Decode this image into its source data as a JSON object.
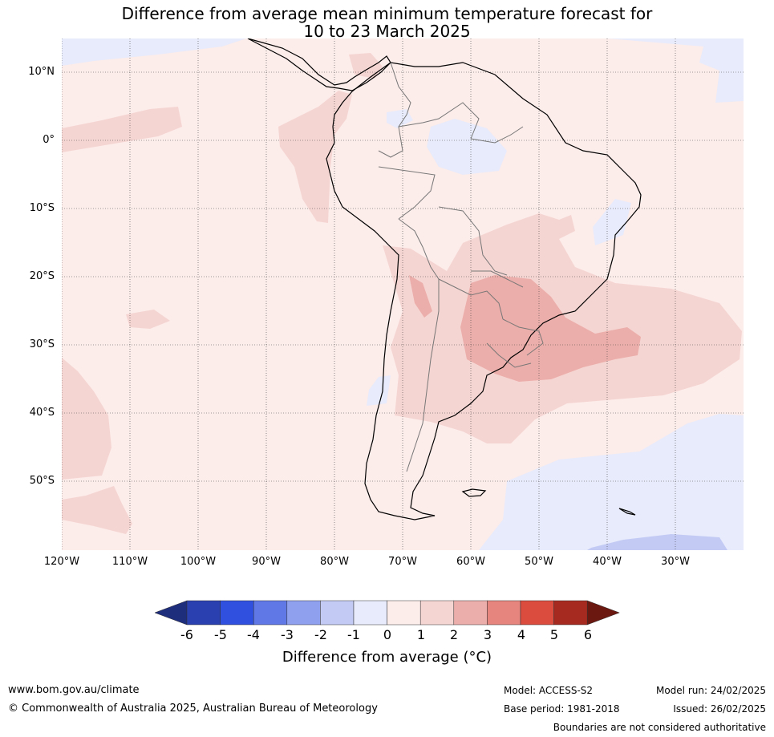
{
  "title": {
    "line1": "Difference from average mean minimum temperature forecast for",
    "line2": "10 to 23 March 2025"
  },
  "axes": {
    "lat_labels": [
      "10°N",
      "0°",
      "10°S",
      "20°S",
      "30°S",
      "40°S",
      "50°S"
    ],
    "lon_labels": [
      "120°W",
      "110°W",
      "100°W",
      "90°W",
      "80°W",
      "70°W",
      "60°W",
      "50°W",
      "40°W",
      "30°W"
    ],
    "lon_range": [
      -120,
      -20
    ],
    "lat_range": [
      -60,
      15
    ]
  },
  "colorbar": {
    "labels": [
      "-6",
      "-5",
      "-4",
      "-3",
      "-2",
      "-1",
      "0",
      "1",
      "2",
      "3",
      "4",
      "5",
      "6"
    ],
    "title": "Difference from average (°C)",
    "colors": [
      "#1f2d7d",
      "#2a3fb0",
      "#3050e0",
      "#5f78e6",
      "#8ea0ee",
      "#c3cbf5",
      "#e8ebfb",
      "#fcecea",
      "#f5d5d2",
      "#ecaeaa",
      "#e6847e",
      "#db4b3e",
      "#a72a20",
      "#6b1810"
    ]
  },
  "map_colors": {
    "ocean_default": "#fcecea",
    "warm_1_2": "#f5d5d2",
    "warm_2_3": "#ecaeaa",
    "cool_0_1": "#e8ebfb",
    "cool_1_2": "#c3cbf5"
  },
  "footer": {
    "website": "www.bom.gov.au/climate",
    "copyright": "© Commonwealth of Australia 2025, Australian Bureau of Meteorology",
    "model": "Model: ACCESS-S2",
    "base_period": "Base period: 1981-2018",
    "model_run": "Model run: 24/02/2025",
    "issued": "Issued: 26/02/2025",
    "disclaimer": "Boundaries are not considered authoritative"
  }
}
